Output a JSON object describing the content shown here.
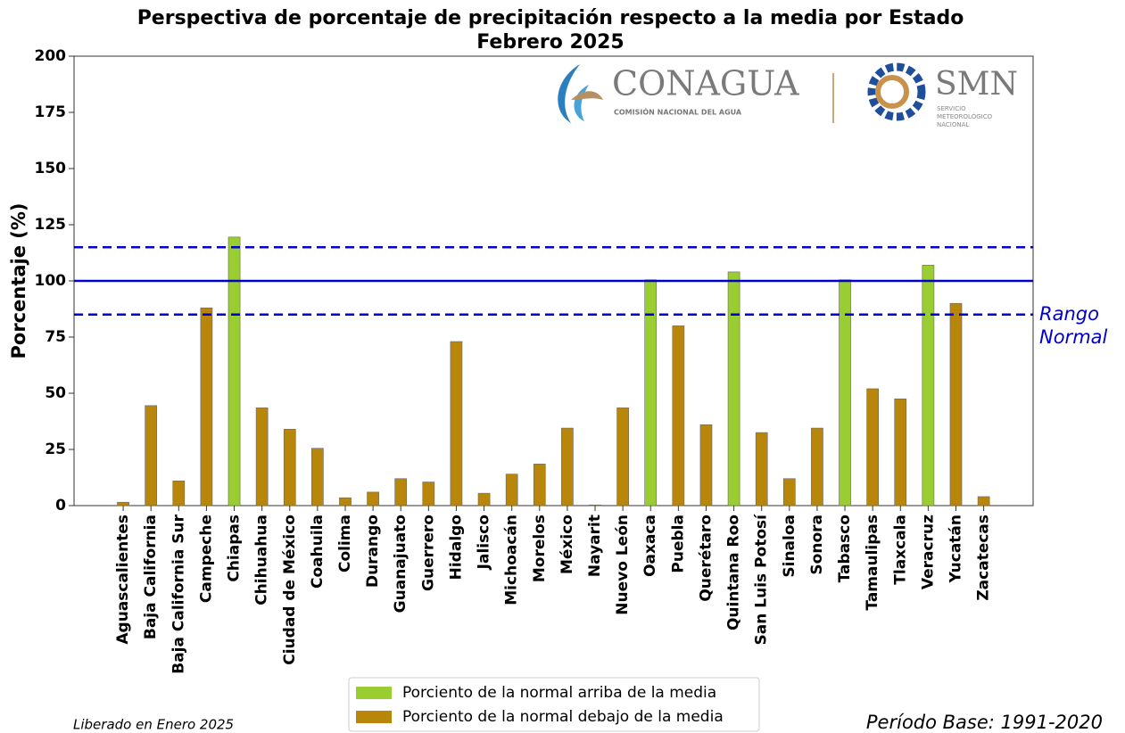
{
  "chart_data": {
    "type": "bar",
    "title": [
      "Perspectiva de porcentaje de precipitación respecto a la media por Estado",
      "Febrero 2025"
    ],
    "ylabel": "Porcentaje (%)",
    "categories": [
      "Aguascalientes",
      "Baja California",
      "Baja California Sur",
      "Campeche",
      "Chiapas",
      "Chihuahua",
      "Ciudad de México",
      "Coahuila",
      "Colima",
      "Durango",
      "Guanajuato",
      "Guerrero",
      "Hidalgo",
      "Jalisco",
      "Michoacán",
      "Morelos",
      "México",
      "Nayarit",
      "Nuevo León",
      "Oaxaca",
      "Puebla",
      "Querétaro",
      "Quintana Roo",
      "San Luis Potosí",
      "Sinaloa",
      "Sonora",
      "Tabasco",
      "Tamaulipas",
      "Tlaxcala",
      "Veracruz",
      "Yucatán",
      "Zacatecas"
    ],
    "series": [
      {
        "name": "Porciento de la normal arriba de la media",
        "color": "#9acd32",
        "values": [
          null,
          null,
          null,
          null,
          119.5,
          null,
          null,
          null,
          null,
          null,
          null,
          null,
          null,
          null,
          null,
          null,
          null,
          null,
          null,
          100.5,
          null,
          null,
          104,
          null,
          null,
          null,
          100.5,
          null,
          null,
          107,
          null,
          null
        ]
      },
      {
        "name": "Porciento de la normal debajo de la media",
        "color": "#b8860b",
        "values": [
          1.5,
          44.5,
          11,
          88,
          null,
          43.5,
          34,
          25.5,
          3.5,
          6,
          12,
          10.5,
          73,
          5.5,
          14,
          18.5,
          34.5,
          0.3,
          43.5,
          null,
          80,
          36,
          null,
          32.5,
          12,
          34.5,
          null,
          52,
          47.5,
          null,
          90,
          4
        ]
      }
    ],
    "ylim": [
      0,
      200
    ],
    "yticks": [
      0,
      25,
      50,
      75,
      100,
      125,
      150,
      175,
      200
    ],
    "reference_lines": [
      {
        "value": 115,
        "style": "dashed"
      },
      {
        "value": 100,
        "style": "solid"
      },
      {
        "value": 85,
        "style": "dashed"
      }
    ],
    "reference_color": "#0000cc",
    "annotation": [
      "Rango",
      "Normal"
    ],
    "legend": "lower-center",
    "footer_left": "Liberado en Enero 2025",
    "footer_right": "Período Base: 1991-2020",
    "logo": {
      "conagua": "CONAGUA",
      "conagua_sub": "COMISIÓN NACIONAL DEL AGUA",
      "smn": "SMN",
      "smn_sub": [
        "SERVICIO",
        "METEOROLÓGICO",
        "NACIONAL"
      ]
    }
  }
}
